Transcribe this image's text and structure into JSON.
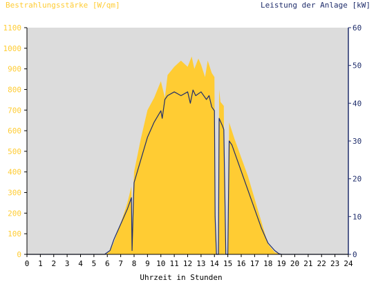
{
  "chart_data": {
    "type": "area",
    "ylabel_left": "Bestrahlungsstärke [W/qm]",
    "ylabel_right": "Leistung der Anlage [kW]",
    "xlabel": "Uhrzeit in Stunden",
    "xlim": [
      0,
      24
    ],
    "ylim_left": [
      0,
      1100
    ],
    "ylim_right": [
      0,
      60
    ],
    "x_ticks": [
      "0",
      "1",
      "2",
      "3",
      "4",
      "5",
      "6",
      "7",
      "8",
      "9",
      "10",
      "11",
      "12",
      "13",
      "14",
      "15",
      "16",
      "17",
      "18",
      "19",
      "20",
      "21",
      "22",
      "23",
      "24"
    ],
    "y_ticks_left": [
      "0",
      "100",
      "200",
      "300",
      "400",
      "500",
      "600",
      "700",
      "800",
      "900",
      "1000",
      "1100"
    ],
    "y_ticks_right": [
      "0",
      "10",
      "20",
      "30",
      "40",
      "50",
      "60"
    ],
    "grid": false,
    "colors": {
      "irradiance": "#ffcc33",
      "power": "#1f2d6b",
      "plot_background": "#dcdcdc",
      "left_axis_text": "#ffcc33",
      "right_axis_text": "#1f2d6b"
    },
    "series": [
      {
        "name": "Bestrahlungsstärke [W/qm]",
        "axis": "left",
        "x": [
          0,
          5.9,
          6.2,
          6.5,
          7.0,
          7.5,
          7.8,
          7.85,
          7.95,
          8.0,
          8.5,
          9.0,
          9.5,
          10.0,
          10.3,
          10.5,
          11.0,
          11.5,
          12.0,
          12.3,
          12.5,
          12.8,
          13.0,
          13.3,
          13.5,
          13.8,
          14.0,
          14.05,
          14.15,
          14.3,
          14.35,
          14.45,
          14.7,
          14.75,
          14.85,
          15.0,
          15.1,
          15.5,
          16.0,
          16.5,
          17.0,
          17.5,
          18.0,
          18.5,
          19.0,
          24
        ],
        "y": [
          0,
          0,
          15,
          60,
          150,
          250,
          330,
          60,
          330,
          400,
          560,
          700,
          760,
          840,
          760,
          870,
          910,
          940,
          910,
          960,
          900,
          950,
          920,
          860,
          940,
          880,
          860,
          250,
          0,
          0,
          800,
          740,
          720,
          220,
          0,
          0,
          640,
          560,
          470,
          380,
          270,
          160,
          50,
          10,
          0,
          0
        ]
      },
      {
        "name": "Leistung der Anlage [kW]",
        "axis": "right",
        "x": [
          0,
          5.8,
          6.2,
          6.5,
          7.0,
          7.5,
          7.8,
          7.85,
          7.95,
          8.0,
          8.5,
          9.0,
          9.5,
          10.0,
          10.1,
          10.3,
          10.5,
          11.0,
          11.5,
          12.0,
          12.2,
          12.4,
          12.6,
          13.0,
          13.4,
          13.6,
          13.8,
          14.0,
          14.05,
          14.15,
          14.3,
          14.35,
          14.6,
          14.7,
          14.85,
          15.0,
          15.1,
          15.3,
          15.5,
          16.0,
          16.5,
          17.0,
          17.5,
          18.0,
          18.5,
          18.8,
          19.0,
          24
        ],
        "y": [
          0,
          0,
          1,
          4,
          8,
          12,
          15,
          1,
          14,
          19,
          25,
          31,
          35,
          38,
          36,
          41,
          42,
          43,
          42,
          43,
          40,
          43.5,
          42,
          43,
          41,
          42,
          39,
          38,
          10,
          0,
          0,
          36,
          34,
          33,
          0,
          0,
          30,
          29,
          27,
          22,
          17,
          12,
          7,
          3,
          1,
          0.2,
          0,
          0
        ]
      }
    ]
  }
}
